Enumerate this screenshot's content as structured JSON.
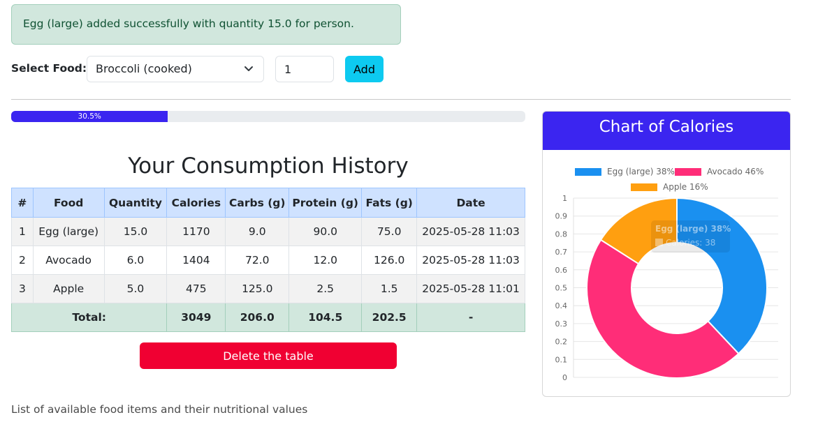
{
  "alert": {
    "message": "Egg (large) added successfully with quantity 15.0 for person."
  },
  "form": {
    "select_label": "Select Food:",
    "selected_food": "Broccoli (cooked)",
    "quantity_value": "1",
    "add_label": "Add"
  },
  "progress": {
    "value": 30.5,
    "label": "30.5%"
  },
  "history": {
    "title": "Your Consumption History",
    "columns": [
      "#",
      "Food",
      "Quantity",
      "Calories",
      "Carbs (g)",
      "Protein (g)",
      "Fats (g)",
      "Date"
    ],
    "rows": [
      [
        "1",
        "Egg (large)",
        "15.0",
        "1170",
        "9.0",
        "90.0",
        "75.0",
        "2025-05-28 11:03"
      ],
      [
        "2",
        "Avocado",
        "6.0",
        "1404",
        "72.0",
        "12.0",
        "126.0",
        "2025-05-28 11:03"
      ],
      [
        "3",
        "Apple",
        "5.0",
        "475",
        "125.0",
        "2.5",
        "1.5",
        "2025-05-28 11:01"
      ]
    ],
    "total": {
      "label": "Total:",
      "calories": "3049",
      "carbs": "206.0",
      "protein": "104.5",
      "fats": "202.5",
      "date": "-"
    }
  },
  "delete_label": "Delete the table",
  "footnote": "List of available food items and their nutritional values",
  "chart_card": {
    "title": "Chart of Calories"
  },
  "colors": {
    "egg": "#1a90f0",
    "avocado": "#ff2d78",
    "apple": "#ff9f10",
    "header": "#3b25f0",
    "alert_bg": "#d1e7dd"
  },
  "chart_data": {
    "type": "pie",
    "categories": [
      "Egg (large)",
      "Avocado",
      "Apple"
    ],
    "values": [
      38,
      46,
      16
    ],
    "legend": [
      "Egg (large) 38%",
      "Avocado 46%",
      "Apple 16%"
    ],
    "legend_position": "top",
    "y_ticks": [
      "0",
      "0.1",
      "0.2",
      "0.3",
      "0.4",
      "0.5",
      "0.6",
      "0.7",
      "0.8",
      "0.9",
      "1"
    ],
    "ylim": [
      0,
      1
    ],
    "grid": true,
    "tooltip": {
      "title": "Egg (large) 38%",
      "body": "Calories: 38"
    }
  }
}
